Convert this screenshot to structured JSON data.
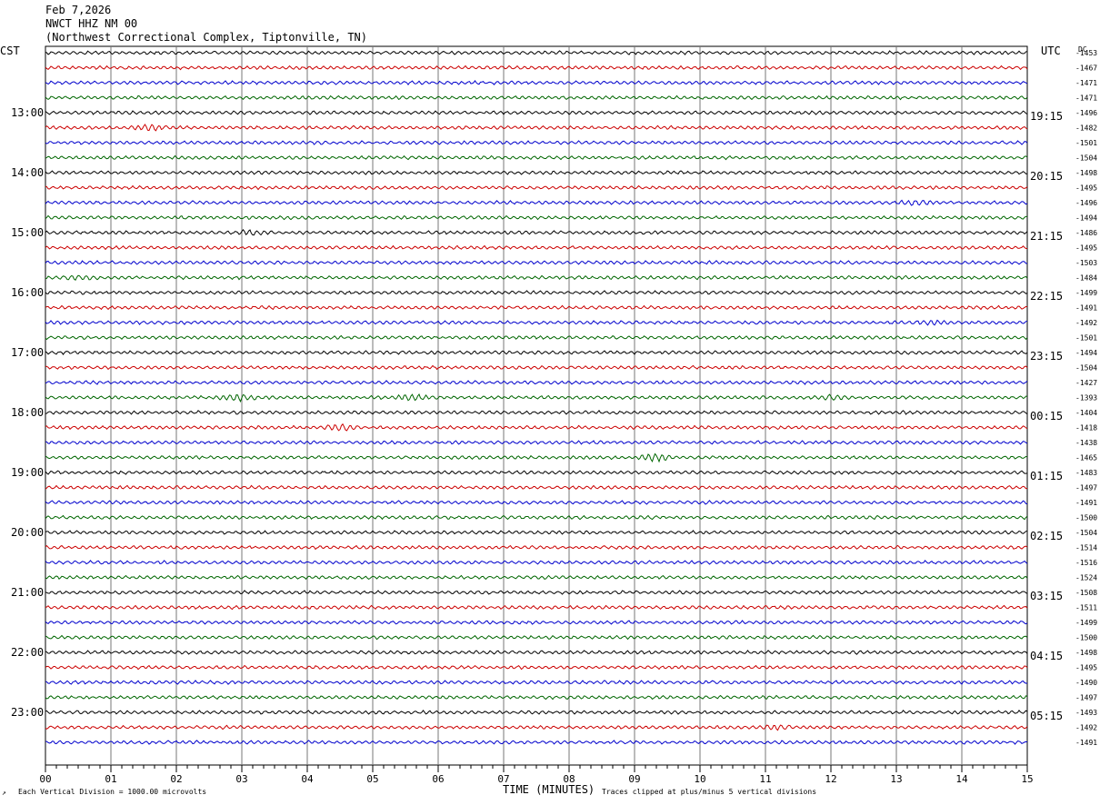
{
  "header": {
    "date": "Feb 7,2026",
    "station": "NWCT HHZ NM 00",
    "location": "(Northwest Correctional Complex, Tiptonville, TN)"
  },
  "left_tz": "CST",
  "right_tz": "UTC",
  "dc_label": "DC",
  "footer": {
    "scale_note": "Each Vertical Division = 1000.00 microvolts",
    "xlabel": "TIME (MINUTES)",
    "clip_note": "Traces clipped at plus/minus 5 vertical divisions",
    "corner_mark": "↗"
  },
  "colors": [
    "#000000",
    "#cc0000",
    "#0000cc",
    "#006600"
  ],
  "chart_data": {
    "type": "line",
    "title": "NWCT HHZ NM 00",
    "xlabel": "TIME (MINUTES)",
    "xlim": [
      0,
      15
    ],
    "x_ticks": [
      "00",
      "01",
      "02",
      "03",
      "04",
      "05",
      "06",
      "07",
      "08",
      "09",
      "10",
      "11",
      "12",
      "13",
      "14",
      "15"
    ],
    "grid": true,
    "left_hour_labels": [
      "13:00",
      "14:00",
      "15:00",
      "16:00",
      "17:00",
      "18:00",
      "19:00",
      "20:00",
      "21:00",
      "22:00",
      "23:00"
    ],
    "right_hour_labels": [
      "19:15",
      "20:15",
      "21:15",
      "22:15",
      "23:15",
      "00:15",
      "01:15",
      "02:15",
      "03:15",
      "04:15",
      "05:15"
    ],
    "dc_offsets": [
      -1453,
      -1467,
      -1471,
      -1471,
      -1496,
      -1482,
      -1501,
      -1504,
      -1498,
      -1495,
      -1496,
      -1494,
      -1486,
      -1495,
      -1503,
      -1484,
      -1499,
      -1491,
      -1492,
      -1501,
      -1494,
      -1504,
      -1427,
      -1393,
      -1404,
      -1418,
      -1438,
      -1465,
      -1483,
      -1497,
      -1491,
      -1500,
      -1504,
      -1514,
      -1516,
      -1524,
      -1508,
      -1511,
      -1499,
      -1500,
      -1498,
      -1495,
      -1490,
      -1497,
      -1493,
      -1492,
      -1491
    ],
    "trace_count": 47,
    "events": [
      {
        "trace": 5,
        "minute": 1.6,
        "amp": 2.2
      },
      {
        "trace": 12,
        "minute": 3.2,
        "amp": 1.6
      },
      {
        "trace": 23,
        "minute": 2.95,
        "amp": 3.2
      },
      {
        "trace": 23,
        "minute": 5.6,
        "amp": 2.0
      },
      {
        "trace": 23,
        "minute": 12.0,
        "amp": 1.8
      },
      {
        "trace": 25,
        "minute": 4.5,
        "amp": 2.2
      },
      {
        "trace": 27,
        "minute": 9.3,
        "amp": 3.0
      },
      {
        "trace": 15,
        "minute": 0.5,
        "amp": 1.2
      },
      {
        "trace": 10,
        "minute": 13.3,
        "amp": 1.6
      },
      {
        "trace": 18,
        "minute": 13.5,
        "amp": 1.6
      },
      {
        "trace": 45,
        "minute": 11.2,
        "amp": 1.4
      }
    ]
  }
}
